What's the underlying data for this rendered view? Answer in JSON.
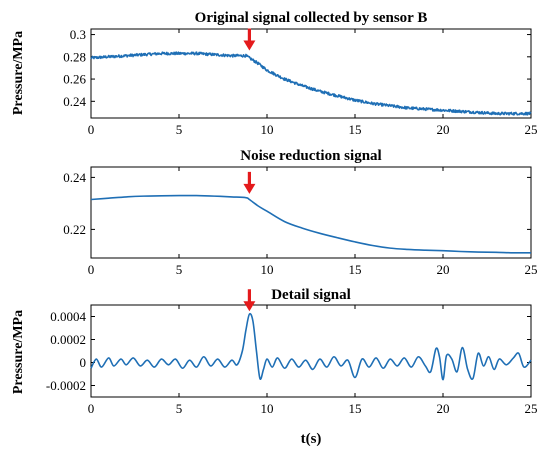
{
  "chart_data": [
    {
      "type": "line",
      "title": "Original signal collected by sensor B",
      "ylabel": "Pressure/MPa",
      "xlabel": "",
      "xlim": [
        0,
        25
      ],
      "ylim": [
        0.225,
        0.305
      ],
      "xticks": [
        0,
        5,
        10,
        15,
        20,
        25
      ],
      "xtick_labels": [
        "0",
        "5",
        "10",
        "15",
        "20",
        "25"
      ],
      "yticks": [
        0.24,
        0.26,
        0.28,
        0.3
      ],
      "ytick_labels": [
        "0.24",
        "0.26",
        "0.28",
        "0.3"
      ],
      "grid": false,
      "annotation": {
        "type": "red-arrow",
        "x": 9,
        "y": 0.283
      },
      "series": [
        {
          "color": "#1f6fb5",
          "noise": 0.0012,
          "x": [
            0,
            1,
            2,
            3,
            4,
            5,
            6,
            7,
            8,
            8.8,
            9,
            9.5,
            10,
            11,
            12,
            13,
            14,
            15,
            16,
            17,
            18,
            19,
            20,
            21,
            22,
            23,
            24,
            25
          ],
          "y": [
            0.279,
            0.28,
            0.281,
            0.282,
            0.283,
            0.283,
            0.283,
            0.282,
            0.281,
            0.281,
            0.279,
            0.274,
            0.268,
            0.26,
            0.254,
            0.249,
            0.245,
            0.241,
            0.238,
            0.236,
            0.234,
            0.233,
            0.232,
            0.231,
            0.23,
            0.229,
            0.229,
            0.229
          ]
        }
      ]
    },
    {
      "type": "line",
      "title": "Noise reduction signal",
      "ylabel": "",
      "xlabel": "",
      "xlim": [
        0,
        25
      ],
      "ylim": [
        0.209,
        0.244
      ],
      "xticks": [
        0,
        5,
        10,
        15,
        20,
        25
      ],
      "xtick_labels": [
        "0",
        "5",
        "10",
        "15",
        "20",
        "25"
      ],
      "yticks": [
        0.22,
        0.24
      ],
      "ytick_labels": [
        "0.22",
        "0.24"
      ],
      "grid": false,
      "annotation": {
        "type": "red-arrow",
        "x": 9,
        "y": 0.2325
      },
      "series": [
        {
          "color": "#1f6fb5",
          "noise": 0,
          "x": [
            0,
            1,
            2,
            3,
            4,
            5,
            6,
            7,
            8,
            8.8,
            9,
            9.5,
            10,
            11,
            12,
            13,
            14,
            15,
            16,
            17,
            18,
            19,
            20,
            21,
            22,
            23,
            24,
            25
          ],
          "y": [
            0.2315,
            0.232,
            0.2325,
            0.2328,
            0.2329,
            0.233,
            0.233,
            0.2328,
            0.2325,
            0.2322,
            0.2315,
            0.229,
            0.227,
            0.223,
            0.2205,
            0.2185,
            0.2168,
            0.2152,
            0.2138,
            0.2128,
            0.2123,
            0.212,
            0.2118,
            0.2115,
            0.2113,
            0.2112,
            0.211,
            0.211
          ]
        }
      ]
    },
    {
      "type": "line",
      "title": "Detail signal",
      "ylabel": "Pressure/MPa",
      "xlabel": "t(s)",
      "xlim": [
        0,
        25
      ],
      "ylim": [
        -0.0003,
        0.0005
      ],
      "xticks": [
        0,
        5,
        10,
        15,
        20,
        25
      ],
      "xtick_labels": [
        "0",
        "5",
        "10",
        "15",
        "20",
        "25"
      ],
      "yticks": [
        -0.0002,
        0,
        0.0002,
        0.0004
      ],
      "ytick_labels": [
        "-0.0002",
        "0",
        "0.0002",
        "0.0004"
      ],
      "grid": false,
      "annotation": {
        "type": "red-arrow",
        "x": 9,
        "y": 0.00042
      },
      "series": [
        {
          "color": "#1f6fb5",
          "noise": 0,
          "x": [
            0,
            0.3,
            0.6,
            1,
            1.3,
            1.7,
            2,
            2.4,
            2.8,
            3.2,
            3.6,
            4,
            4.4,
            4.8,
            5.2,
            5.6,
            6,
            6.4,
            6.8,
            7.2,
            7.6,
            8,
            8.3,
            8.6,
            8.8,
            9,
            9.2,
            9.4,
            9.6,
            9.8,
            10,
            10.3,
            10.6,
            11,
            11.4,
            11.8,
            12.2,
            12.6,
            13,
            13.4,
            13.8,
            14.2,
            14.6,
            15,
            15.4,
            15.8,
            16.2,
            16.6,
            17,
            17.4,
            17.8,
            18.2,
            18.6,
            19,
            19.3,
            19.6,
            19.8,
            20,
            20.2,
            20.5,
            20.8,
            21.1,
            21.4,
            21.7,
            22,
            22.3,
            22.6,
            22.9,
            23.2,
            23.6,
            24,
            24.3,
            24.6,
            25
          ],
          "y": [
            -5e-05,
            3e-05,
            -4e-05,
            4e-05,
            -3e-05,
            3e-05,
            -2e-05,
            4e-05,
            -3e-05,
            2e-05,
            -4e-05,
            3e-05,
            -2e-05,
            3e-05,
            -5e-05,
            2e-05,
            -4e-05,
            5e-05,
            -3e-05,
            3e-05,
            -4e-05,
            2e-05,
            -2e-05,
            0.0001,
            0.00028,
            0.00042,
            0.00036,
            0.0001,
            -0.00014,
            -6e-05,
            3e-05,
            -4e-05,
            4e-05,
            -5e-05,
            3e-05,
            -4e-05,
            2e-05,
            -6e-05,
            3e-05,
            -4e-05,
            5e-05,
            -3e-05,
            2e-05,
            -0.00013,
            3e-05,
            -4e-05,
            4e-05,
            -5e-05,
            3e-05,
            -3e-05,
            4e-05,
            -4e-05,
            5e-05,
            -3e-05,
            -8e-05,
            0.00012,
            5e-05,
            -0.00015,
            6e-05,
            3e-05,
            -8e-05,
            0.00013,
            -6e-05,
            -0.00014,
            8e-05,
            -3e-05,
            5e-05,
            -6e-05,
            3e-05,
            -2e-05,
            4e-05,
            8e-05,
            -4e-05,
            2e-05
          ]
        }
      ]
    }
  ]
}
